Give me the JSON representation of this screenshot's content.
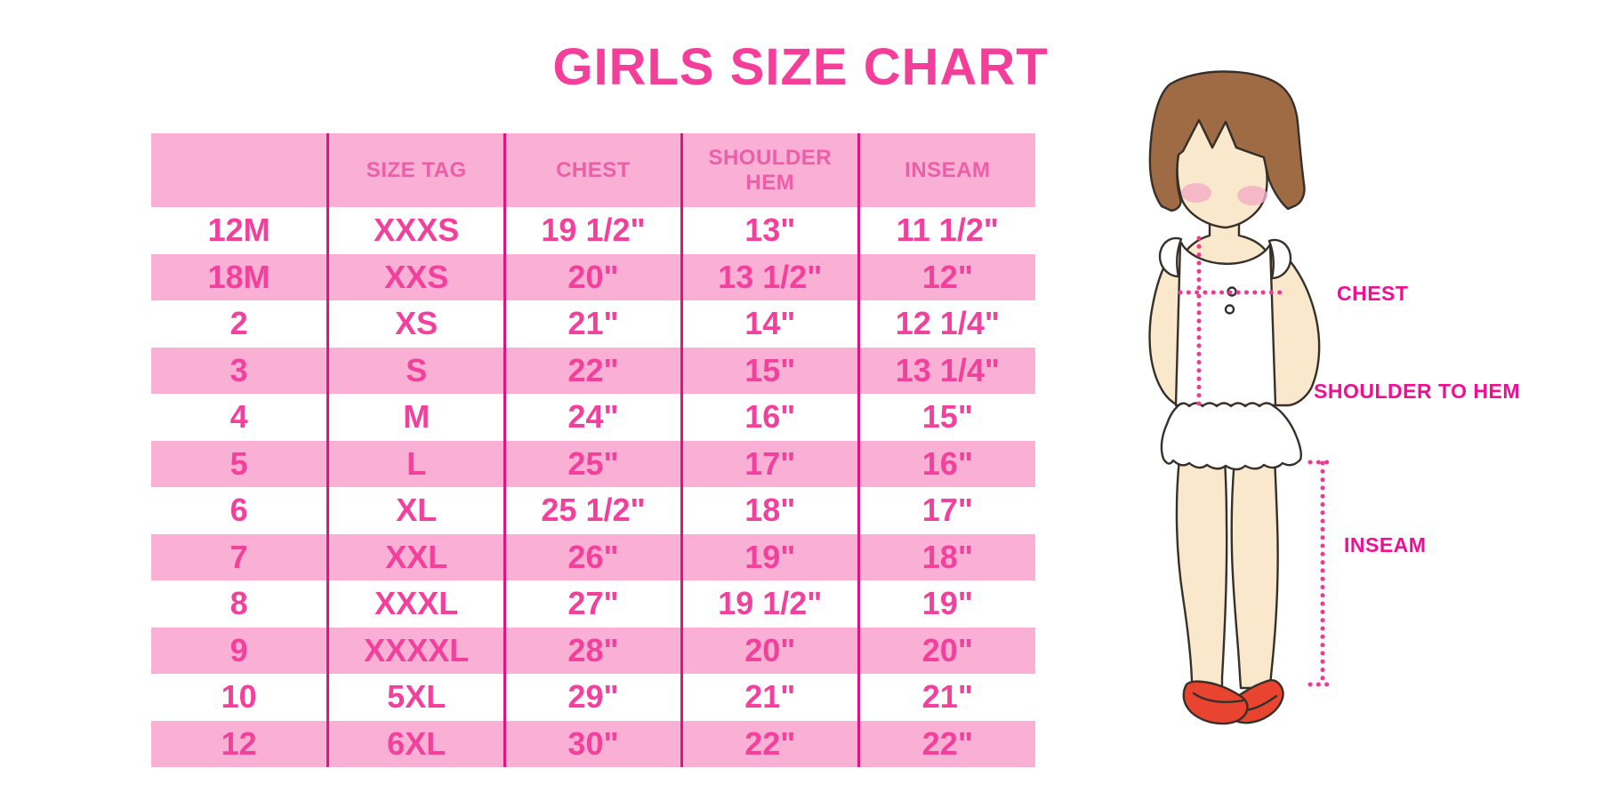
{
  "page": {
    "title": "GIRLS SIZE CHART"
  },
  "chart_data": {
    "type": "table",
    "title": "GIRLS SIZE CHART",
    "units": "inches",
    "columns": [
      "",
      "SIZE TAG",
      "CHEST",
      "SHOULDER HEM",
      "INSEAM"
    ],
    "rows": [
      [
        "12M",
        "XXXS",
        "19 1/2\"",
        "13\"",
        "11 1/2\""
      ],
      [
        "18M",
        "XXS",
        "20\"",
        "13 1/2\"",
        "12\""
      ],
      [
        "2",
        "XS",
        "21\"",
        "14\"",
        "12 1/4\""
      ],
      [
        "3",
        "S",
        "22\"",
        "15\"",
        "13 1/4\""
      ],
      [
        "4",
        "M",
        "24\"",
        "16\"",
        "15\""
      ],
      [
        "5",
        "L",
        "25\"",
        "17\"",
        "16\""
      ],
      [
        "6",
        "XL",
        "25 1/2\"",
        "18\"",
        "17\""
      ],
      [
        "7",
        "XXL",
        "26\"",
        "19\"",
        "18\""
      ],
      [
        "8",
        "XXXL",
        "27\"",
        "19 1/2\"",
        "19\""
      ],
      [
        "9",
        "XXXXL",
        "28\"",
        "20\"",
        "20\""
      ],
      [
        "10",
        "5XL",
        "29\"",
        "21\"",
        "21\""
      ],
      [
        "12",
        "6XL",
        "30\"",
        "22\"",
        "22\""
      ]
    ],
    "row_striping": [
      "white",
      "pink"
    ]
  },
  "figure": {
    "icon": "girl-measurement-illustration",
    "labels": {
      "chest": "CHEST",
      "shoulder_to_hem": "SHOULDER TO HEM",
      "inseam": "INSEAM"
    }
  },
  "colors": {
    "title_pink": "#F43F9A",
    "row_pink": "#FAAFD5",
    "separator_pink": "#E0137F",
    "cell_text_pink": "#F2419C",
    "header_text_pink": "#EC5FA8",
    "label_magenta": "#F00F92",
    "dotted_line_pink": "#EE3A94",
    "hair_brown": "#9F6B44",
    "skin": "#F9E8CB",
    "blush": "#F2ABC6",
    "shoe_red": "#E94430",
    "outline_dark": "#37302A"
  }
}
